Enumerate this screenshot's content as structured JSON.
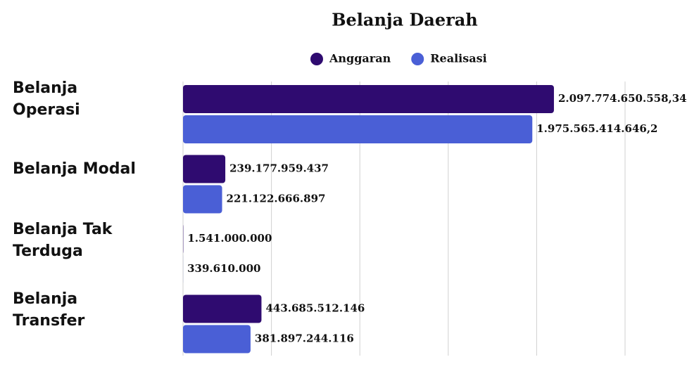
{
  "chart_data": {
    "type": "hbar",
    "title": "Belanja Daerah",
    "categories": [
      "Belanja Operasi",
      "Belanja Modal",
      "Belanja Tak Terduga",
      "Belanja Transfer"
    ],
    "series": [
      {
        "name": "Anggaran",
        "color": "#2f0b70",
        "values": [
          2097774650558.34,
          239177959437,
          1541000000,
          443685512146
        ],
        "value_labels": [
          "2.097.774.650.558,34",
          "239.177.959.437",
          "1.541.000.000",
          "443.685.512.146"
        ]
      },
      {
        "name": "Realisasi",
        "color": "#4a5fd6",
        "values": [
          1975565414646.2,
          221122666897,
          339610000,
          381897244116
        ],
        "value_labels": [
          "1.975.565.414.646,2",
          "221.122.666.897",
          "339.610.000",
          "381.897.244.116"
        ]
      }
    ],
    "xlim": [
      0,
      2500000000000
    ],
    "xticks": [
      0,
      500000000000,
      1000000000000,
      1500000000000,
      2000000000000,
      2500000000000
    ],
    "grid": true
  }
}
